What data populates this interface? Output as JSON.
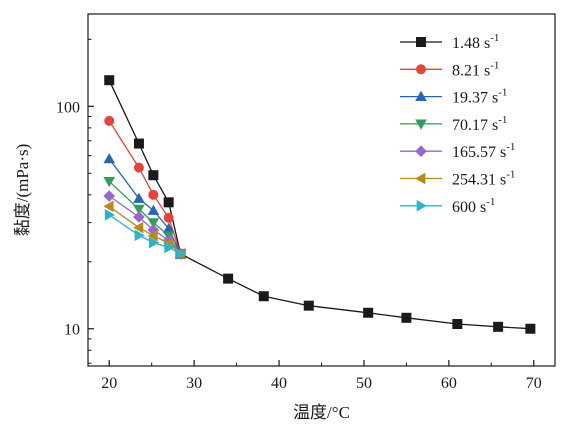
{
  "chart_data": {
    "type": "line",
    "xlabel": "温度/°C",
    "ylabel": "黏度/(mPa·s)",
    "xlim": [
      17.5,
      72.5
    ],
    "ylim": [
      6.8,
      260
    ],
    "ylog": true,
    "grid": false,
    "legend_position": "top-right",
    "x_ticks": [
      20,
      30,
      40,
      50,
      60,
      70
    ],
    "x_tick_labels": [
      "20",
      "30",
      "40",
      "50",
      "60",
      "70"
    ],
    "y_ticks": [
      10,
      100
    ],
    "y_tick_labels": [
      "10",
      "100"
    ],
    "series": [
      {
        "name": "1.48",
        "unit": "s",
        "exp": "-1",
        "color": "#1a1a1a",
        "marker": "square",
        "x": [
          20.0,
          23.5,
          25.2,
          27.0,
          28.4,
          34.0,
          38.2,
          43.5,
          50.5,
          55.0,
          61.0,
          65.8,
          69.6
        ],
        "y": [
          131,
          68,
          49,
          37,
          21.7,
          16.8,
          14.0,
          12.7,
          11.8,
          11.2,
          10.5,
          10.2,
          10.0
        ]
      },
      {
        "name": "8.21",
        "unit": "s",
        "exp": "-1",
        "color": "#e6433b",
        "marker": "circle",
        "x": [
          20.0,
          23.5,
          25.2,
          27.0,
          28.4
        ],
        "y": [
          86,
          53,
          40,
          31.5,
          21.7
        ]
      },
      {
        "name": "19.37",
        "unit": "s",
        "exp": "-1",
        "color": "#2a64b5",
        "marker": "triangle-up",
        "x": [
          20.0,
          23.5,
          25.2,
          27.0,
          28.4
        ],
        "y": [
          58,
          38.5,
          34,
          28.2,
          21.7
        ]
      },
      {
        "name": "70.17",
        "unit": "s",
        "exp": "-1",
        "color": "#2f9e5b",
        "marker": "triangle-down",
        "x": [
          20.0,
          23.5,
          25.2,
          27.0,
          28.4
        ],
        "y": [
          46,
          34.5,
          30,
          26.2,
          21.7
        ]
      },
      {
        "name": "165.57",
        "unit": "s",
        "exp": "-1",
        "color": "#9966cc",
        "marker": "diamond",
        "x": [
          20.0,
          23.5,
          25.2,
          27.0,
          28.4
        ],
        "y": [
          39.5,
          31.8,
          27.8,
          25,
          21.7
        ]
      },
      {
        "name": "254.31",
        "unit": "s",
        "exp": "-1",
        "color": "#b88a1b",
        "marker": "triangle-left",
        "x": [
          20.0,
          23.5,
          25.2,
          27.0,
          28.4
        ],
        "y": [
          35.5,
          28.5,
          26.2,
          24.2,
          21.7
        ]
      },
      {
        "name": "600",
        "unit": "s",
        "exp": "-1",
        "color": "#2ab5c8",
        "marker": "triangle-right",
        "x": [
          20.0,
          23.5,
          25.2,
          27.0,
          28.4
        ],
        "y": [
          32.5,
          26.3,
          24.4,
          23.2,
          21.7
        ]
      }
    ]
  }
}
